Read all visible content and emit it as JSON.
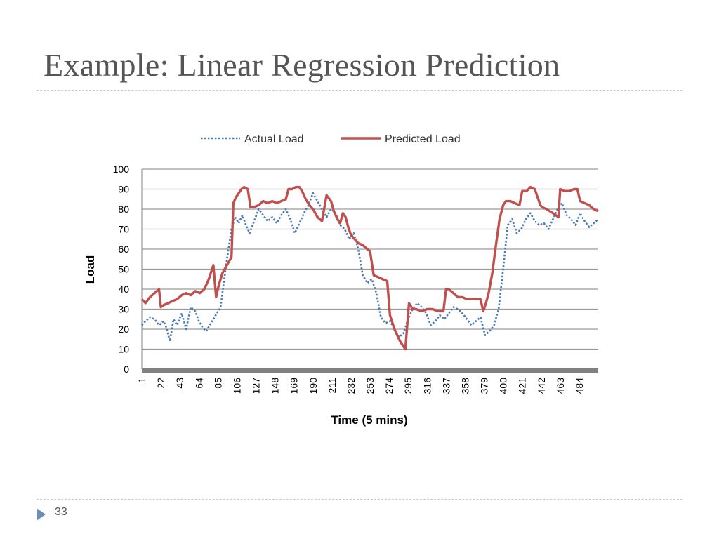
{
  "slide": {
    "title": "Example: Linear Regression Prediction",
    "page_number": "33"
  },
  "chart_data": {
    "type": "line",
    "xlabel": "Time (5 mins)",
    "ylabel": "Load",
    "ylim": [
      0,
      100
    ],
    "yticks": [
      0,
      10,
      20,
      30,
      40,
      50,
      60,
      70,
      80,
      90,
      100
    ],
    "xlim": [
      1,
      505
    ],
    "xticks": [
      1,
      22,
      43,
      64,
      85,
      106,
      127,
      148,
      169,
      190,
      211,
      232,
      253,
      274,
      295,
      316,
      337,
      358,
      379,
      400,
      421,
      442,
      463,
      484
    ],
    "grid": "horizontal",
    "legend_position": "top",
    "series": [
      {
        "name": "Actual Load",
        "style": "dotted",
        "color": "#4a7ab5",
        "x": [
          1,
          5,
          10,
          15,
          20,
          25,
          28,
          32,
          36,
          40,
          45,
          50,
          55,
          60,
          64,
          68,
          72,
          76,
          80,
          84,
          88,
          92,
          96,
          100,
          104,
          108,
          112,
          116,
          120,
          125,
          130,
          135,
          140,
          145,
          150,
          155,
          160,
          165,
          170,
          175,
          180,
          185,
          190,
          195,
          200,
          205,
          210,
          215,
          220,
          225,
          230,
          235,
          240,
          245,
          250,
          255,
          260,
          265,
          270,
          275,
          280,
          285,
          290,
          295,
          300,
          305,
          310,
          315,
          320,
          325,
          330,
          335,
          340,
          345,
          350,
          355,
          360,
          365,
          370,
          375,
          380,
          385,
          390,
          395,
          400,
          405,
          410,
          415,
          420,
          425,
          430,
          435,
          440,
          445,
          450,
          455,
          460,
          465,
          470,
          475,
          480,
          485,
          490,
          495,
          500,
          505
        ],
        "y": [
          22,
          24,
          26,
          25,
          22,
          24,
          21,
          14,
          25,
          22,
          28,
          20,
          31,
          29,
          24,
          21,
          19,
          22,
          25,
          28,
          31,
          45,
          58,
          70,
          76,
          73,
          77,
          72,
          68,
          74,
          80,
          77,
          74,
          76,
          73,
          77,
          80,
          75,
          68,
          73,
          78,
          82,
          88,
          84,
          80,
          76,
          80,
          78,
          72,
          70,
          65,
          68,
          60,
          47,
          43,
          45,
          38,
          26,
          23,
          24,
          20,
          16,
          18,
          25,
          30,
          33,
          31,
          28,
          22,
          24,
          27,
          25,
          28,
          31,
          30,
          28,
          25,
          22,
          24,
          26,
          17,
          19,
          22,
          30,
          50,
          72,
          75,
          68,
          70,
          75,
          78,
          74,
          72,
          73,
          70,
          75,
          80,
          83,
          77,
          75,
          72,
          78,
          74,
          71,
          73,
          75
        ]
      },
      {
        "name": "Predicted Load",
        "style": "solid",
        "color": "#c0504d",
        "x": [
          1,
          5,
          10,
          15,
          20,
          22,
          25,
          30,
          35,
          40,
          45,
          50,
          55,
          60,
          65,
          70,
          75,
          80,
          83,
          86,
          90,
          95,
          100,
          102,
          105,
          108,
          111,
          114,
          118,
          121,
          125,
          130,
          135,
          140,
          145,
          150,
          155,
          160,
          163,
          167,
          171,
          175,
          178,
          182,
          186,
          190,
          195,
          200,
          205,
          210,
          213,
          217,
          220,
          223,
          226,
          229,
          232,
          236,
          240,
          245,
          250,
          253,
          257,
          262,
          267,
          272,
          275,
          280,
          286,
          292,
          296,
          300,
          304,
          310,
          316,
          322,
          328,
          334,
          337,
          340,
          345,
          350,
          355,
          360,
          365,
          370,
          375,
          378,
          381,
          384,
          388,
          392,
          396,
          400,
          403,
          408,
          413,
          418,
          421,
          426,
          430,
          435,
          441,
          443,
          448,
          455,
          461,
          463,
          468,
          473,
          478,
          482,
          485,
          490,
          495,
          500,
          505
        ],
        "y": [
          35,
          33,
          36,
          38,
          40,
          31,
          32,
          33,
          34,
          35,
          37,
          38,
          37,
          39,
          38,
          40,
          45,
          52,
          36,
          42,
          48,
          52,
          56,
          83,
          86,
          88,
          90,
          91,
          90,
          81,
          81,
          82,
          84,
          83,
          84,
          83,
          84,
          85,
          90,
          90,
          91,
          91,
          89,
          85,
          82,
          80,
          76,
          74,
          87,
          84,
          79,
          75,
          73,
          78,
          76,
          71,
          67,
          65,
          63,
          62,
          60,
          59,
          47,
          46,
          45,
          44,
          27,
          20,
          14,
          10,
          33,
          30,
          30,
          29,
          30,
          30,
          29,
          29,
          40,
          40,
          38,
          36,
          36,
          35,
          35,
          35,
          35,
          29,
          33,
          38,
          48,
          62,
          75,
          82,
          84,
          84,
          83,
          82,
          89,
          89,
          91,
          90,
          82,
          81,
          80,
          78,
          76,
          90,
          89,
          89,
          90,
          90,
          84,
          83,
          82,
          80,
          79
        ]
      }
    ]
  }
}
